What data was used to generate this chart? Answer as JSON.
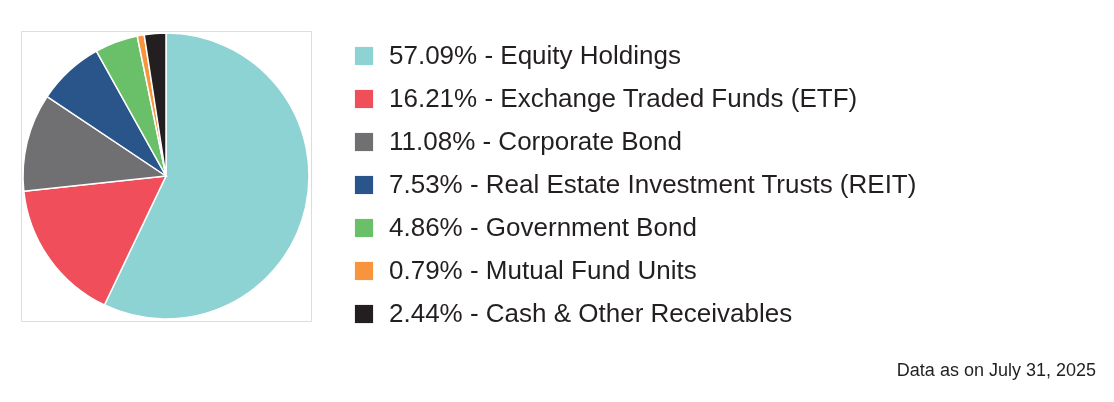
{
  "chart_data": {
    "type": "pie",
    "categories": [
      "57.09% - Equity Holdings",
      "16.21% - Exchange Traded Funds (ETF)",
      "11.08% - Corporate Bond",
      "7.53% - Real Estate Investment Trusts (REIT)",
      "4.86% - Government Bond",
      "0.79% - Mutual Fund Units",
      "2.44% - Cash & Other Receivables"
    ],
    "values": [
      57.09,
      16.21,
      11.08,
      7.53,
      4.86,
      0.79,
      2.44
    ],
    "colors": [
      "#8dd3d3",
      "#f04e5a",
      "#707073",
      "#2a558a",
      "#6abf69",
      "#f7943d",
      "#231f20"
    ],
    "legend": "right",
    "annotations": [
      "Data as on July 31, 2025"
    ]
  }
}
